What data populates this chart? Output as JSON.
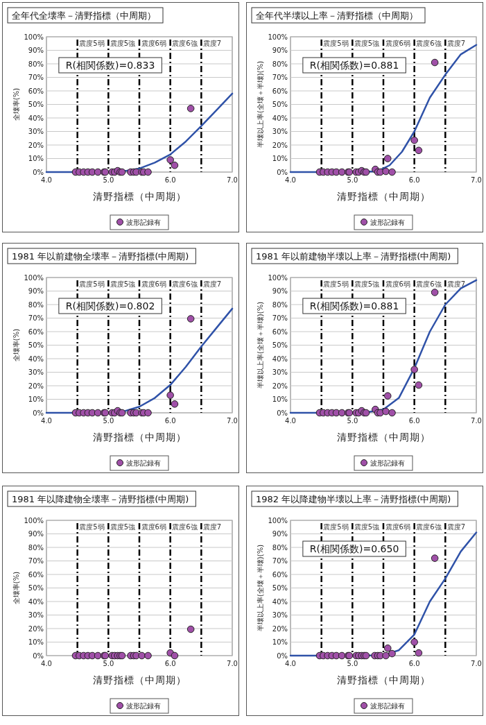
{
  "chart_data": [
    {
      "type": "scatter",
      "title": "全年代全壊率－清野指標（中周期）",
      "xlabel": "清野指標（中周期）",
      "ylabel": "全壊率(%)",
      "xlim": [
        4,
        7
      ],
      "xticks": [
        {
          "value": 4,
          "label": "4.0"
        },
        {
          "value": 5,
          "label": "5.0"
        },
        {
          "value": 6,
          "label": "6.0"
        },
        {
          "value": 7,
          "label": "7.0"
        }
      ],
      "ylim": [
        0,
        100
      ],
      "yticks": [
        {
          "value": 0,
          "label": "0%"
        },
        {
          "value": 10,
          "label": "10%"
        },
        {
          "value": 20,
          "label": "20%"
        },
        {
          "value": 30,
          "label": "30%"
        },
        {
          "value": 40,
          "label": "40%"
        },
        {
          "value": 50,
          "label": "50%"
        },
        {
          "value": 60,
          "label": "60%"
        },
        {
          "value": 70,
          "label": "70%"
        },
        {
          "value": 80,
          "label": "80%"
        },
        {
          "value": 90,
          "label": "90%"
        },
        {
          "value": 100,
          "label": "100%"
        }
      ],
      "grid": "y",
      "legend": "bottom",
      "marker": "circle",
      "annotations": [
        "R(相関係数)=0.833"
      ],
      "ref_lines": [
        {
          "axis": "x",
          "value": 4.5,
          "label": "震度5弱",
          "line_style": "dashed"
        },
        {
          "axis": "x",
          "value": 5.0,
          "label": "震度5強",
          "line_style": "dashed"
        },
        {
          "axis": "x",
          "value": 5.5,
          "label": "震度6弱",
          "line_style": "dashed"
        },
        {
          "axis": "x",
          "value": 6.0,
          "label": "震度6強",
          "line_style": "dashed"
        },
        {
          "axis": "x",
          "value": 6.5,
          "label": "震度7",
          "line_style": "dashed"
        }
      ],
      "series": [
        {
          "name": "波形記録有",
          "color": "#a050a8",
          "x": [
            4.47,
            4.53,
            4.6,
            4.67,
            4.74,
            4.83,
            4.93,
            4.95,
            5.06,
            5.1,
            5.15,
            5.19,
            5.22,
            5.36,
            5.41,
            5.45,
            5.54,
            5.57,
            5.64,
            6.0,
            6.07,
            6.33
          ],
          "values": [
            0,
            0,
            0,
            0,
            0,
            0,
            0,
            0,
            0,
            0,
            1,
            0,
            0,
            0,
            0,
            0,
            0,
            0,
            0,
            9,
            5,
            47
          ]
        },
        {
          "type": "line",
          "marker": "none",
          "color": "#2f52a8",
          "x": [
            4.0,
            5.0,
            5.3,
            5.5,
            5.75,
            6.0,
            6.25,
            6.5,
            6.75,
            7.0
          ],
          "values": [
            0,
            0,
            1,
            2.6,
            7,
            13,
            22.6,
            34,
            46,
            58
          ]
        }
      ]
    },
    {
      "type": "scatter",
      "title": "全年代半壊以上率－清野指標（中周期）",
      "xlabel": "清野指標（中周期）",
      "ylabel": "半壊以上率(全壊＋半壊)(%)",
      "xlim": [
        4,
        7
      ],
      "xticks": [
        {
          "value": 4,
          "label": "4.0"
        },
        {
          "value": 5,
          "label": "5.0"
        },
        {
          "value": 6,
          "label": "6.0"
        },
        {
          "value": 7,
          "label": "7.0"
        }
      ],
      "ylim": [
        0,
        100
      ],
      "yticks": [
        {
          "value": 0,
          "label": "0%"
        },
        {
          "value": 10,
          "label": "10%"
        },
        {
          "value": 20,
          "label": "20%"
        },
        {
          "value": 30,
          "label": "30%"
        },
        {
          "value": 40,
          "label": "40%"
        },
        {
          "value": 50,
          "label": "50%"
        },
        {
          "value": 60,
          "label": "60%"
        },
        {
          "value": 70,
          "label": "70%"
        },
        {
          "value": 80,
          "label": "80%"
        },
        {
          "value": 90,
          "label": "90%"
        },
        {
          "value": 100,
          "label": "100%"
        }
      ],
      "grid": "y",
      "legend": "bottom",
      "marker": "circle",
      "annotations": [
        "R(相関係数)=0.881"
      ],
      "ref_lines": [
        {
          "axis": "x",
          "value": 4.5,
          "label": "震度5弱",
          "line_style": "dashed"
        },
        {
          "axis": "x",
          "value": 5.0,
          "label": "震度5強",
          "line_style": "dashed"
        },
        {
          "axis": "x",
          "value": 5.5,
          "label": "震度6弱",
          "line_style": "dashed"
        },
        {
          "axis": "x",
          "value": 6.0,
          "label": "震度6強",
          "line_style": "dashed"
        },
        {
          "axis": "x",
          "value": 6.5,
          "label": "震度7",
          "line_style": "dashed"
        }
      ],
      "series": [
        {
          "name": "波形記録有",
          "color": "#a050a8",
          "x": [
            4.47,
            4.53,
            4.6,
            4.67,
            4.74,
            4.83,
            4.93,
            4.95,
            5.06,
            5.1,
            5.15,
            5.19,
            5.22,
            5.37,
            5.41,
            5.45,
            5.54,
            5.57,
            5.64,
            6.0,
            6.07,
            6.33
          ],
          "values": [
            0,
            0,
            0,
            0,
            0,
            0,
            0,
            0,
            0,
            0,
            1,
            0,
            0,
            2,
            0,
            0,
            0.5,
            10,
            0,
            23.5,
            16,
            81
          ]
        },
        {
          "type": "line",
          "marker": "none",
          "color": "#2f52a8",
          "x": [
            4.0,
            5.0,
            5.2,
            5.4,
            5.6,
            5.8,
            6.0,
            6.25,
            6.5,
            6.75,
            7.0
          ],
          "values": [
            0,
            0,
            0.2,
            0.5,
            5,
            15,
            30,
            55,
            72,
            87,
            94
          ]
        }
      ]
    },
    {
      "type": "scatter",
      "title": "1981 年以前建物全壊率－清野指標(中周期)",
      "xlabel": "清野指標（中周期）",
      "ylabel": "全壊率(%)",
      "xlim": [
        4,
        7
      ],
      "xticks": [
        {
          "value": 4,
          "label": "4.0"
        },
        {
          "value": 5,
          "label": "5.0"
        },
        {
          "value": 6,
          "label": "6.0"
        },
        {
          "value": 7,
          "label": "7.0"
        }
      ],
      "ylim": [
        0,
        100
      ],
      "yticks": [
        {
          "value": 0,
          "label": "0%"
        },
        {
          "value": 10,
          "label": "10%"
        },
        {
          "value": 20,
          "label": "20%"
        },
        {
          "value": 30,
          "label": "30%"
        },
        {
          "value": 40,
          "label": "40%"
        },
        {
          "value": 50,
          "label": "50%"
        },
        {
          "value": 60,
          "label": "60%"
        },
        {
          "value": 70,
          "label": "70%"
        },
        {
          "value": 80,
          "label": "80%"
        },
        {
          "value": 90,
          "label": "90%"
        },
        {
          "value": 100,
          "label": "100%"
        }
      ],
      "grid": "y",
      "legend": "bottom",
      "marker": "circle",
      "annotations": [
        "R(相関係数)=0.802"
      ],
      "ref_lines": [
        {
          "axis": "x",
          "value": 4.5,
          "label": "震度5弱",
          "line_style": "dashed"
        },
        {
          "axis": "x",
          "value": 5.0,
          "label": "震度5強",
          "line_style": "dashed"
        },
        {
          "axis": "x",
          "value": 5.5,
          "label": "震度6弱",
          "line_style": "dashed"
        },
        {
          "axis": "x",
          "value": 6.0,
          "label": "震度6強",
          "line_style": "dashed"
        },
        {
          "axis": "x",
          "value": 6.5,
          "label": "震度7",
          "line_style": "dashed"
        }
      ],
      "series": [
        {
          "name": "波形記録有",
          "color": "#a050a8",
          "x": [
            4.47,
            4.53,
            4.6,
            4.67,
            4.74,
            4.83,
            4.93,
            4.95,
            5.06,
            5.1,
            5.15,
            5.19,
            5.22,
            5.36,
            5.41,
            5.45,
            5.54,
            5.57,
            5.64,
            6.0,
            6.07,
            6.33
          ],
          "values": [
            0,
            0,
            0,
            0,
            0,
            0,
            0,
            0,
            0,
            0,
            1.5,
            0,
            0,
            0,
            0,
            0,
            0,
            0,
            0,
            13,
            6.5,
            69.5
          ]
        },
        {
          "type": "line",
          "marker": "none",
          "color": "#2f52a8",
          "x": [
            4.0,
            5.0,
            5.25,
            5.5,
            5.75,
            6.0,
            6.25,
            6.5,
            6.75,
            7.0
          ],
          "values": [
            0,
            0,
            1,
            4.5,
            11,
            20.6,
            34,
            49,
            63,
            77
          ]
        }
      ]
    },
    {
      "type": "scatter",
      "title": "1981 年以前建物半壊以上率－清野指標(中周期)",
      "xlabel": "清野指標（中周期）",
      "ylabel": "半壊以上率(全壊＋半壊)(%)",
      "xlim": [
        4,
        7
      ],
      "xticks": [
        {
          "value": 4,
          "label": "4.0"
        },
        {
          "value": 5,
          "label": "5.0"
        },
        {
          "value": 6,
          "label": "6.0"
        },
        {
          "value": 7,
          "label": "7.0"
        }
      ],
      "ylim": [
        0,
        100
      ],
      "yticks": [
        {
          "value": 0,
          "label": "0%"
        },
        {
          "value": 10,
          "label": "10%"
        },
        {
          "value": 20,
          "label": "20%"
        },
        {
          "value": 30,
          "label": "30%"
        },
        {
          "value": 40,
          "label": "40%"
        },
        {
          "value": 50,
          "label": "50%"
        },
        {
          "value": 60,
          "label": "60%"
        },
        {
          "value": 70,
          "label": "70%"
        },
        {
          "value": 80,
          "label": "80%"
        },
        {
          "value": 90,
          "label": "90%"
        },
        {
          "value": 100,
          "label": "100%"
        }
      ],
      "grid": "y",
      "legend": "bottom",
      "marker": "circle",
      "annotations": [
        "R(相関係数)=0.881"
      ],
      "ref_lines": [
        {
          "axis": "x",
          "value": 4.5,
          "label": "震度5弱",
          "line_style": "dashed"
        },
        {
          "axis": "x",
          "value": 5.0,
          "label": "震度5強",
          "line_style": "dashed"
        },
        {
          "axis": "x",
          "value": 5.5,
          "label": "震度6弱",
          "line_style": "dashed"
        },
        {
          "axis": "x",
          "value": 6.0,
          "label": "震度6強",
          "line_style": "dashed"
        },
        {
          "axis": "x",
          "value": 6.5,
          "label": "震度7",
          "line_style": "dashed"
        }
      ],
      "series": [
        {
          "name": "波形記録有",
          "color": "#a050a8",
          "x": [
            4.47,
            4.53,
            4.6,
            4.67,
            4.74,
            4.83,
            4.93,
            4.95,
            5.06,
            5.1,
            5.15,
            5.19,
            5.22,
            5.37,
            5.41,
            5.45,
            5.54,
            5.57,
            5.64,
            6.0,
            6.07,
            6.33
          ],
          "values": [
            0,
            0,
            0,
            0,
            0,
            0,
            0,
            0,
            0,
            0,
            1.5,
            0,
            0,
            2.5,
            0,
            0,
            1,
            12.5,
            0,
            32,
            20.5,
            89
          ]
        },
        {
          "type": "line",
          "marker": "none",
          "color": "#2f52a8",
          "x": [
            4.0,
            5.0,
            5.25,
            5.5,
            5.75,
            6.0,
            6.25,
            6.5,
            6.75,
            7.0
          ],
          "values": [
            0,
            0,
            0.5,
            2.5,
            11,
            33,
            60,
            80,
            92,
            98
          ]
        }
      ]
    },
    {
      "type": "scatter",
      "title": "1981 年以降建物全壊率－清野指標(中周期)",
      "xlabel": "清野指標（中周期）",
      "ylabel": "全壊率(%)",
      "xlim": [
        4,
        7
      ],
      "xticks": [
        {
          "value": 4,
          "label": "4.0"
        },
        {
          "value": 5,
          "label": "5.0"
        },
        {
          "value": 6,
          "label": "6.0"
        },
        {
          "value": 7,
          "label": "7.0"
        }
      ],
      "ylim": [
        0,
        100
      ],
      "yticks": [
        {
          "value": 0,
          "label": "0%"
        },
        {
          "value": 10,
          "label": "10%"
        },
        {
          "value": 20,
          "label": "20%"
        },
        {
          "value": 30,
          "label": "30%"
        },
        {
          "value": 40,
          "label": "40%"
        },
        {
          "value": 50,
          "label": "50%"
        },
        {
          "value": 60,
          "label": "60%"
        },
        {
          "value": 70,
          "label": "70%"
        },
        {
          "value": 80,
          "label": "80%"
        },
        {
          "value": 90,
          "label": "90%"
        },
        {
          "value": 100,
          "label": "100%"
        }
      ],
      "grid": "y",
      "legend": "bottom",
      "marker": "circle",
      "ref_lines": [
        {
          "axis": "x",
          "value": 4.5,
          "label": "震度5弱",
          "line_style": "dashed"
        },
        {
          "axis": "x",
          "value": 5.0,
          "label": "震度5強",
          "line_style": "dashed"
        },
        {
          "axis": "x",
          "value": 5.5,
          "label": "震度6弱",
          "line_style": "dashed"
        },
        {
          "axis": "x",
          "value": 6.0,
          "label": "震度6強",
          "line_style": "dashed"
        },
        {
          "axis": "x",
          "value": 6.5,
          "label": "震度7",
          "line_style": "dashed"
        }
      ],
      "series": [
        {
          "name": "波形記録有",
          "color": "#a050a8",
          "x": [
            4.47,
            4.53,
            4.6,
            4.67,
            4.74,
            4.83,
            4.93,
            4.95,
            5.06,
            5.1,
            5.15,
            5.19,
            5.22,
            5.36,
            5.41,
            5.45,
            5.54,
            5.64,
            6.0,
            6.07,
            6.33
          ],
          "values": [
            0,
            0,
            0,
            0,
            0,
            0,
            0,
            0,
            0,
            0,
            0,
            0,
            0,
            0,
            0,
            0,
            0,
            0,
            2,
            0,
            19.5
          ]
        }
      ]
    },
    {
      "type": "scatter",
      "title": "1982 年以降建物半壊以上率－清野指標(中周期)",
      "xlabel": "清野指標（中周期）",
      "ylabel": "半壊以上率(全壊＋半壊)(%)",
      "xlim": [
        4,
        7
      ],
      "xticks": [
        {
          "value": 4,
          "label": "4.0"
        },
        {
          "value": 5,
          "label": "5.0"
        },
        {
          "value": 6,
          "label": "6.0"
        },
        {
          "value": 7,
          "label": "7.0"
        }
      ],
      "ylim": [
        0,
        100
      ],
      "yticks": [
        {
          "value": 0,
          "label": "0%"
        },
        {
          "value": 10,
          "label": "10%"
        },
        {
          "value": 20,
          "label": "20%"
        },
        {
          "value": 30,
          "label": "30%"
        },
        {
          "value": 40,
          "label": "40%"
        },
        {
          "value": 50,
          "label": "50%"
        },
        {
          "value": 60,
          "label": "60%"
        },
        {
          "value": 70,
          "label": "70%"
        },
        {
          "value": 80,
          "label": "80%"
        },
        {
          "value": 90,
          "label": "90%"
        },
        {
          "value": 100,
          "label": "100%"
        }
      ],
      "grid": "y",
      "legend": "bottom",
      "marker": "circle",
      "annotations": [
        "R(相関係数)=0.650"
      ],
      "ref_lines": [
        {
          "axis": "x",
          "value": 4.5,
          "label": "震度5弱",
          "line_style": "dashed"
        },
        {
          "axis": "x",
          "value": 5.0,
          "label": "震度5強",
          "line_style": "dashed"
        },
        {
          "axis": "x",
          "value": 5.5,
          "label": "震度6弱",
          "line_style": "dashed"
        },
        {
          "axis": "x",
          "value": 6.0,
          "label": "震度6強",
          "line_style": "dashed"
        },
        {
          "axis": "x",
          "value": 6.5,
          "label": "震度7",
          "line_style": "dashed"
        }
      ],
      "series": [
        {
          "name": "波形記録有",
          "color": "#a050a8",
          "x": [
            4.47,
            4.53,
            4.6,
            4.67,
            4.74,
            4.83,
            4.93,
            4.95,
            5.06,
            5.1,
            5.15,
            5.19,
            5.22,
            5.36,
            5.41,
            5.45,
            5.54,
            5.57,
            5.64,
            6.0,
            6.07,
            6.33
          ],
          "values": [
            0,
            0,
            0,
            0,
            0,
            0,
            0,
            0,
            0,
            0,
            0,
            0,
            0,
            0,
            0,
            0,
            0,
            5.5,
            1.5,
            10,
            2,
            72
          ]
        },
        {
          "type": "line",
          "marker": "none",
          "color": "#2f52a8",
          "x": [
            4.0,
            5.0,
            5.5,
            5.75,
            6.0,
            6.25,
            6.5,
            6.75,
            7.0
          ],
          "values": [
            0,
            0,
            0.3,
            4,
            15.6,
            40,
            57,
            77,
            91
          ]
        }
      ]
    }
  ]
}
